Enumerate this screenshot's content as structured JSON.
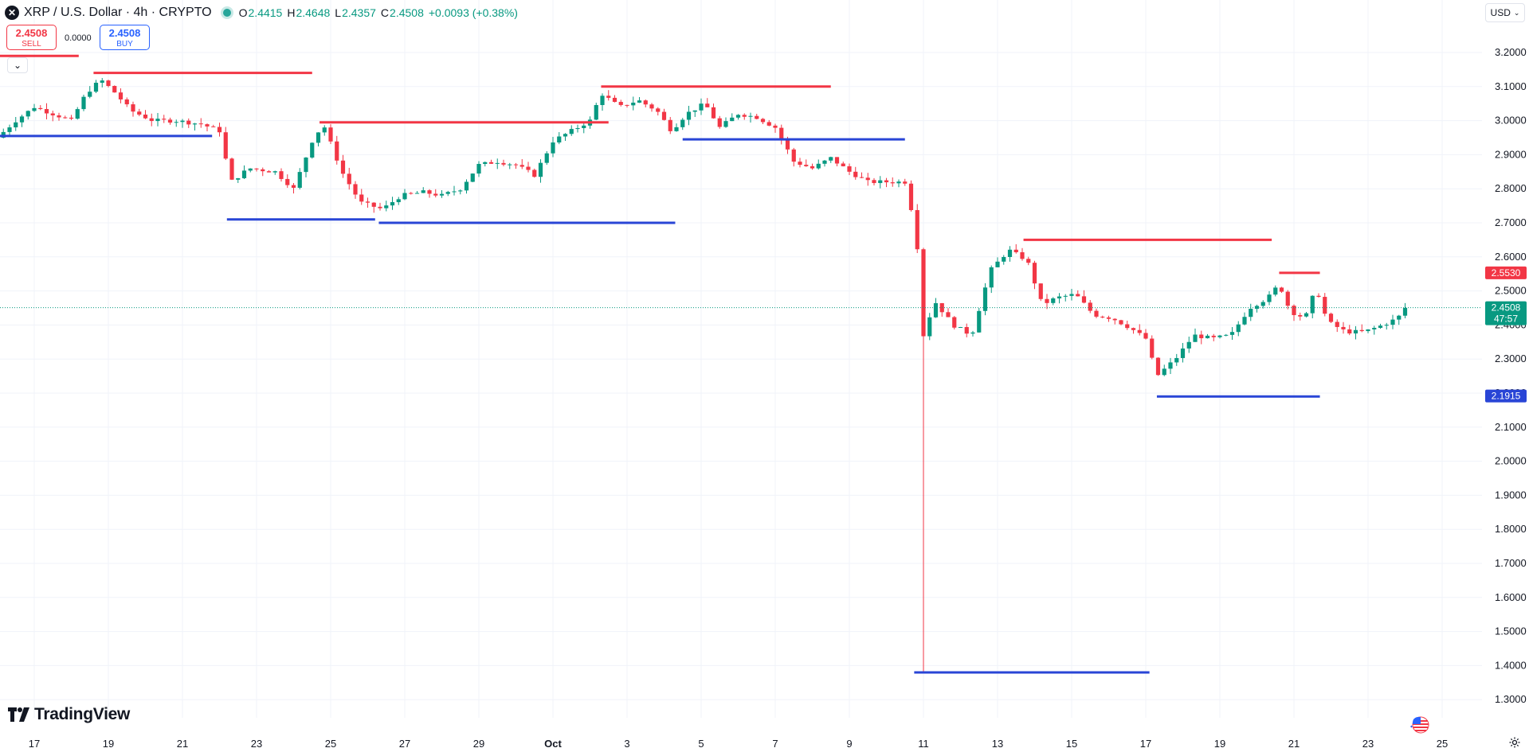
{
  "header": {
    "icon": "x-circle-icon",
    "title": "XRP / U.S. Dollar · 4h · CRYPTO",
    "open_label": "O",
    "open": "2.4415",
    "high_label": "H",
    "high": "2.4648",
    "low_label": "L",
    "low": "2.4357",
    "close_label": "C",
    "close": "2.4508",
    "change": "+0.0093 (+0.38%)",
    "up_color": "#089981"
  },
  "trade": {
    "sell_price": "2.4508",
    "sell_label": "SELL",
    "spread": "0.0000",
    "buy_price": "2.4508",
    "buy_label": "BUY"
  },
  "currency": {
    "value": "USD"
  },
  "branding": {
    "logo_text": "TradingView"
  },
  "colors": {
    "up": "#089981",
    "down": "#f23645",
    "resistance": "#f23645",
    "support": "#2945d6"
  },
  "chart_data": {
    "type": "candlestick",
    "interval": "4h",
    "price_ylim": [
      1.25,
      3.24
    ],
    "y_ticks": [
      "1.3000",
      "1.4000",
      "1.5000",
      "1.6000",
      "1.7000",
      "1.8000",
      "1.9000",
      "2.0000",
      "2.1000",
      "2.2000",
      "2.3000",
      "2.4000",
      "2.5000",
      "2.6000",
      "2.7000",
      "2.8000",
      "2.9000",
      "3.0000",
      "3.1000",
      "3.2000"
    ],
    "x_ticks": [
      "17",
      "19",
      "21",
      "23",
      "25",
      "27",
      "29",
      "Oct",
      "3",
      "5",
      "7",
      "9",
      "11",
      "13",
      "15",
      "17",
      "19",
      "21",
      "23",
      "25"
    ],
    "grid": true,
    "price_path": [
      {
        "t": 16.0,
        "p": 2.95
      },
      {
        "t": 16.5,
        "p": 3.0
      },
      {
        "t": 17.0,
        "p": 3.04
      },
      {
        "t": 17.5,
        "p": 3.02
      },
      {
        "t": 18.0,
        "p": 3.0
      },
      {
        "t": 18.4,
        "p": 3.08
      },
      {
        "t": 18.8,
        "p": 3.12
      },
      {
        "t": 19.2,
        "p": 3.08
      },
      {
        "t": 19.6,
        "p": 3.03
      },
      {
        "t": 20.2,
        "p": 3.0
      },
      {
        "t": 20.8,
        "p": 3.0
      },
      {
        "t": 21.5,
        "p": 2.99
      },
      {
        "t": 22.0,
        "p": 2.97
      },
      {
        "t": 22.3,
        "p": 2.82
      },
      {
        "t": 22.8,
        "p": 2.86
      },
      {
        "t": 23.5,
        "p": 2.85
      },
      {
        "t": 24.0,
        "p": 2.8
      },
      {
        "t": 24.5,
        "p": 2.94
      },
      {
        "t": 24.8,
        "p": 2.99
      },
      {
        "t": 25.3,
        "p": 2.85
      },
      {
        "t": 25.8,
        "p": 2.76
      },
      {
        "t": 26.4,
        "p": 2.74
      },
      {
        "t": 26.9,
        "p": 2.78
      },
      {
        "t": 27.5,
        "p": 2.79
      },
      {
        "t": 28.0,
        "p": 2.78
      },
      {
        "t": 28.5,
        "p": 2.8
      },
      {
        "t": 29.0,
        "p": 2.87
      },
      {
        "t": 29.5,
        "p": 2.88
      },
      {
        "t": 30.0,
        "p": 2.87
      },
      {
        "t": 30.5,
        "p": 2.84
      },
      {
        "t": 31.0,
        "p": 2.94
      },
      {
        "t": 31.5,
        "p": 2.97
      },
      {
        "t": 32.0,
        "p": 3.0
      },
      {
        "t": 32.3,
        "p": 3.08
      },
      {
        "t": 32.8,
        "p": 3.04
      },
      {
        "t": 33.3,
        "p": 3.06
      },
      {
        "t": 33.8,
        "p": 3.03
      },
      {
        "t": 34.2,
        "p": 2.97
      },
      {
        "t": 34.6,
        "p": 3.02
      },
      {
        "t": 35.1,
        "p": 3.05
      },
      {
        "t": 35.5,
        "p": 2.98
      },
      {
        "t": 36.0,
        "p": 3.02
      },
      {
        "t": 36.5,
        "p": 3.01
      },
      {
        "t": 37.0,
        "p": 2.98
      },
      {
        "t": 37.5,
        "p": 2.88
      },
      {
        "t": 38.0,
        "p": 2.86
      },
      {
        "t": 38.5,
        "p": 2.89
      },
      {
        "t": 39.0,
        "p": 2.85
      },
      {
        "t": 39.5,
        "p": 2.82
      },
      {
        "t": 40.0,
        "p": 2.82
      },
      {
        "t": 40.5,
        "p": 2.82
      },
      {
        "t": 40.8,
        "p": 2.68
      },
      {
        "t": 41.0,
        "p": 2.37
      },
      {
        "t": 41.3,
        "p": 2.47
      },
      {
        "t": 41.8,
        "p": 2.4
      },
      {
        "t": 42.3,
        "p": 2.37
      },
      {
        "t": 42.8,
        "p": 2.56
      },
      {
        "t": 43.3,
        "p": 2.62
      },
      {
        "t": 43.8,
        "p": 2.59
      },
      {
        "t": 44.2,
        "p": 2.46
      },
      {
        "t": 44.6,
        "p": 2.48
      },
      {
        "t": 45.1,
        "p": 2.49
      },
      {
        "t": 45.6,
        "p": 2.43
      },
      {
        "t": 46.1,
        "p": 2.42
      },
      {
        "t": 46.6,
        "p": 2.39
      },
      {
        "t": 47.0,
        "p": 2.36
      },
      {
        "t": 47.3,
        "p": 2.25
      },
      {
        "t": 47.8,
        "p": 2.3
      },
      {
        "t": 48.3,
        "p": 2.37
      },
      {
        "t": 48.8,
        "p": 2.36
      },
      {
        "t": 49.3,
        "p": 2.37
      },
      {
        "t": 49.8,
        "p": 2.45
      },
      {
        "t": 50.3,
        "p": 2.48
      },
      {
        "t": 50.6,
        "p": 2.52
      },
      {
        "t": 50.9,
        "p": 2.44
      },
      {
        "t": 51.3,
        "p": 2.42
      },
      {
        "t": 51.6,
        "p": 2.51
      },
      {
        "t": 51.9,
        "p": 2.41
      },
      {
        "t": 52.4,
        "p": 2.38
      },
      {
        "t": 52.9,
        "p": 2.38
      },
      {
        "t": 53.4,
        "p": 2.4
      },
      {
        "t": 53.8,
        "p": 2.42
      },
      {
        "t": 54.0,
        "p": 2.45
      }
    ],
    "levels": [
      {
        "kind": "resistance",
        "price": 3.19,
        "from": 16.0,
        "to": 18.2
      },
      {
        "kind": "resistance",
        "price": 3.14,
        "from": 18.6,
        "to": 24.5
      },
      {
        "kind": "resistance",
        "price": 2.995,
        "from": 24.7,
        "to": 32.5
      },
      {
        "kind": "resistance",
        "price": 3.1,
        "from": 32.3,
        "to": 38.5
      },
      {
        "kind": "resistance",
        "price": 2.65,
        "from": 43.7,
        "to": 50.4
      },
      {
        "kind": "resistance",
        "price": 2.553,
        "from": 50.6,
        "to": 51.7
      },
      {
        "kind": "support",
        "price": 2.955,
        "from": 16.0,
        "to": 21.8
      },
      {
        "kind": "support",
        "price": 2.71,
        "from": 22.2,
        "to": 26.2
      },
      {
        "kind": "support",
        "price": 2.7,
        "from": 26.3,
        "to": 34.3
      },
      {
        "kind": "support",
        "price": 2.945,
        "from": 34.5,
        "to": 40.5
      },
      {
        "kind": "support",
        "price": 1.38,
        "from": 40.75,
        "to": 47.1
      },
      {
        "kind": "support",
        "price": 2.19,
        "from": 47.3,
        "to": 51.7
      }
    ],
    "last_price": 2.4508,
    "price_labels": [
      {
        "text": "2.5530",
        "price": 2.553,
        "color": "#f23645"
      },
      {
        "text": "2.4508",
        "sub": "47:57",
        "price": 2.4508,
        "color": "#089981"
      },
      {
        "text": "2.1915",
        "price": 2.1915,
        "color": "#2945d6"
      }
    ]
  }
}
